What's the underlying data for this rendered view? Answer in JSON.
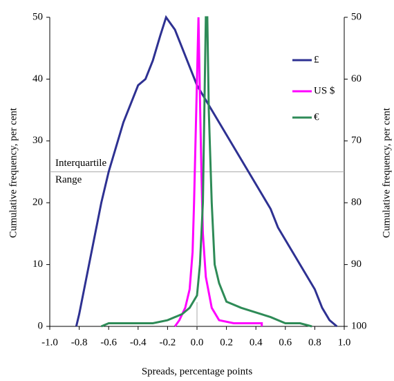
{
  "chart_data": {
    "type": "line",
    "xlabel": "Spreads, percentage points",
    "ylabel": "Cumulative frequency, per cent",
    "y2label": "Cumulative frequency, per cent",
    "xlim": [
      -1,
      1
    ],
    "xticks": [
      {
        "value": -1,
        "label": "-1.0"
      },
      -0.8,
      -0.6,
      -0.4,
      -0.2,
      {
        "value": 0,
        "label": "0.0"
      },
      0.2,
      0.4,
      0.6,
      0.8,
      {
        "value": 1,
        "label": "1.0"
      }
    ],
    "ylim": [
      0,
      50
    ],
    "yticks": [
      0,
      10,
      20,
      30,
      40,
      50
    ],
    "y2lim": [
      100,
      50
    ],
    "y2ticks": [
      100,
      90,
      80,
      70,
      60,
      50
    ],
    "legend": "right",
    "annotation": {
      "text": [
        "Interquartile",
        "Range"
      ],
      "y": 25
    },
    "series": [
      {
        "name": "£",
        "color": "#2e3192",
        "x": [
          -0.82,
          -0.8,
          -0.75,
          -0.7,
          -0.65,
          -0.6,
          -0.55,
          -0.5,
          -0.45,
          -0.4,
          -0.35,
          -0.3,
          -0.25,
          -0.21,
          -0.15,
          -0.1,
          -0.05,
          0.0,
          0.05,
          0.1,
          0.15,
          0.2,
          0.25,
          0.3,
          0.35,
          0.4,
          0.45,
          0.5,
          0.55,
          0.6,
          0.65,
          0.7,
          0.75,
          0.8,
          0.85,
          0.9,
          0.95
        ],
        "values": [
          0,
          2,
          8,
          14,
          20,
          25,
          29,
          33,
          36,
          39,
          40,
          43,
          47,
          50,
          48,
          45,
          42,
          39,
          37,
          35,
          33,
          31,
          29,
          27,
          25,
          23,
          21,
          19,
          16,
          14,
          12,
          10,
          8,
          6,
          3,
          1,
          0
        ]
      },
      {
        "name": "US $",
        "color": "#ff00ff",
        "x": [
          -0.15,
          -0.12,
          -0.08,
          -0.05,
          -0.03,
          -0.02,
          -0.01,
          0.0,
          0.01,
          0.02,
          0.03,
          0.04,
          0.06,
          0.1,
          0.15,
          0.25,
          0.44,
          0.44
        ],
        "values": [
          0,
          1,
          3,
          6,
          12,
          20,
          30,
          40,
          50,
          37,
          25,
          15,
          8,
          3,
          1,
          0.5,
          0.5,
          0
        ]
      },
      {
        "name": "€",
        "color": "#2e8b57",
        "x": [
          -0.65,
          -0.6,
          -0.3,
          -0.2,
          -0.1,
          -0.05,
          0.0,
          0.02,
          0.04,
          0.05,
          0.06,
          0.07,
          0.08,
          0.1,
          0.12,
          0.15,
          0.2,
          0.3,
          0.5,
          0.6,
          0.7,
          0.78
        ],
        "values": [
          0,
          0.5,
          0.5,
          1,
          2,
          3,
          5,
          10,
          20,
          35,
          50,
          50,
          35,
          20,
          10,
          7,
          4,
          3,
          1.5,
          0.5,
          0.5,
          0
        ]
      }
    ]
  }
}
